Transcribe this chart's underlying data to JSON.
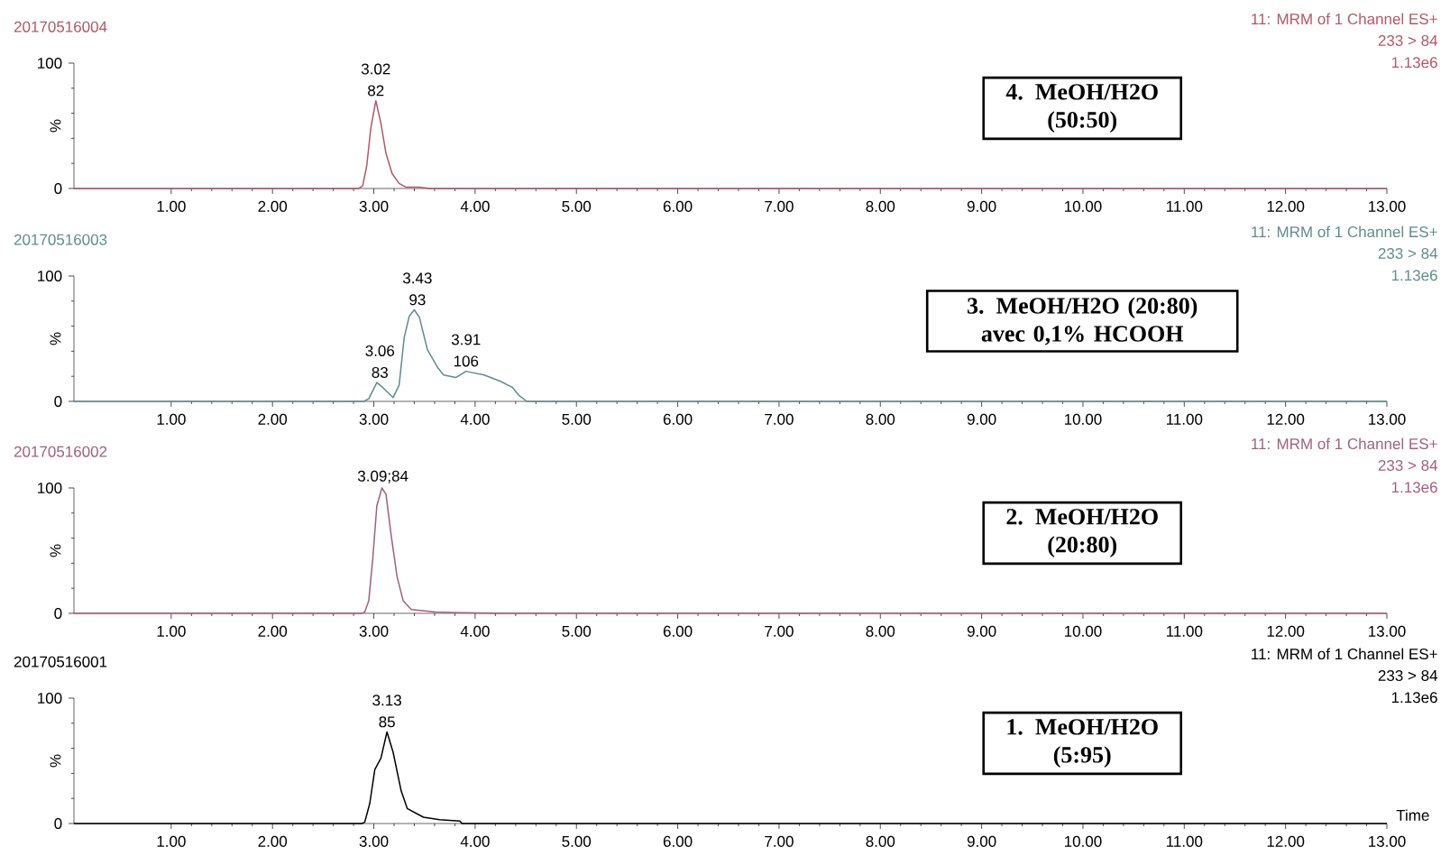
{
  "chart_data": [
    {
      "type": "line",
      "title": "20170516004",
      "ylabel": "%",
      "color": "#b05868",
      "x": [
        0.04,
        2.85,
        2.89,
        2.93,
        2.97,
        3.02,
        3.07,
        3.12,
        3.18,
        3.25,
        3.32,
        3.45,
        3.55,
        13.0
      ],
      "values": [
        0,
        0,
        2,
        18,
        48,
        70,
        52,
        28,
        12,
        4,
        1,
        1,
        0,
        0
      ],
      "xlim": [
        0.04,
        13.0
      ],
      "ylim": [
        0,
        100
      ],
      "yticks": [
        0,
        100
      ],
      "xticks": [
        {
          "value": 1,
          "label": "1.00"
        },
        {
          "value": 2,
          "label": "2.00"
        },
        {
          "value": 3,
          "label": "3.00"
        },
        {
          "value": 4,
          "label": "4.00"
        },
        {
          "value": 5,
          "label": "5.00"
        },
        {
          "value": 6,
          "label": "6.00"
        },
        {
          "value": 7,
          "label": "7.00"
        },
        {
          "value": 8,
          "label": "8.00"
        },
        {
          "value": 9,
          "label": "9.00"
        },
        {
          "value": 10,
          "label": "10.00"
        },
        {
          "value": 11,
          "label": "11.00"
        },
        {
          "value": 12,
          "label": "12.00"
        },
        {
          "value": 13,
          "label": "13.00"
        }
      ],
      "annotations": [
        "11: MRM of 1 Channel ES+",
        "233 > 84",
        "1.13e6",
        "4. MeOH/H2O (50:50)",
        {
          "text": "3.02 82",
          "x": 3.02,
          "y": 70
        }
      ]
    },
    {
      "type": "line",
      "title": "20170516003",
      "ylabel": "%",
      "color": "#5f8c8c",
      "x": [
        0.04,
        2.9,
        2.95,
        3.03,
        3.09,
        3.19,
        3.25,
        3.3,
        3.35,
        3.4,
        3.45,
        3.53,
        3.63,
        3.69,
        3.81,
        3.91,
        4.09,
        4.25,
        4.37,
        4.43,
        4.51,
        13.0
      ],
      "values": [
        0,
        0,
        2,
        15,
        11,
        3,
        13,
        51,
        68,
        73,
        67,
        41,
        27,
        21,
        19,
        24,
        21,
        16,
        11,
        5,
        0,
        0
      ],
      "xlim": [
        0.04,
        13.0
      ],
      "ylim": [
        0,
        100
      ],
      "yticks": [
        0,
        100
      ],
      "xticks": [
        {
          "value": 1,
          "label": "1.00"
        },
        {
          "value": 2,
          "label": "2.00"
        },
        {
          "value": 3,
          "label": "3.00"
        },
        {
          "value": 4,
          "label": "4.00"
        },
        {
          "value": 5,
          "label": "5.00"
        },
        {
          "value": 6,
          "label": "6.00"
        },
        {
          "value": 7,
          "label": "7.00"
        },
        {
          "value": 8,
          "label": "8.00"
        },
        {
          "value": 9,
          "label": "9.00"
        },
        {
          "value": 10,
          "label": "10.00"
        },
        {
          "value": 11,
          "label": "11.00"
        },
        {
          "value": 12,
          "label": "12.00"
        },
        {
          "value": 13,
          "label": "13.00"
        }
      ],
      "annotations": [
        "11: MRM of 1 Channel ES+",
        "233 > 84",
        "1.13e6",
        "3. MeOH/H2O (20:80) avec 0,1% HCOOH",
        {
          "text": "3.06 83",
          "x": 3.06,
          "y": 15
        },
        {
          "text": "3.43 93",
          "x": 3.43,
          "y": 73
        },
        {
          "text": "3.91 106",
          "x": 3.91,
          "y": 24
        }
      ]
    },
    {
      "type": "line",
      "title": "20170516002",
      "ylabel": "%",
      "color": "#a0607e",
      "x": [
        0.04,
        2.88,
        2.91,
        2.95,
        2.99,
        3.03,
        3.08,
        3.12,
        3.17,
        3.23,
        3.29,
        3.37,
        3.61,
        3.89,
        4.29,
        13.0
      ],
      "values": [
        0,
        0,
        1,
        10,
        44,
        86,
        100,
        95,
        63,
        29,
        10,
        3,
        1,
        0.5,
        0,
        0
      ],
      "xlim": [
        0.04,
        13.0
      ],
      "ylim": [
        0,
        100
      ],
      "yticks": [
        0,
        100
      ],
      "xticks": [
        {
          "value": 1,
          "label": "1.00"
        },
        {
          "value": 2,
          "label": "2.00"
        },
        {
          "value": 3,
          "label": "3.00"
        },
        {
          "value": 4,
          "label": "4.00"
        },
        {
          "value": 5,
          "label": "5.00"
        },
        {
          "value": 6,
          "label": "6.00"
        },
        {
          "value": 7,
          "label": "7.00"
        },
        {
          "value": 8,
          "label": "8.00"
        },
        {
          "value": 9,
          "label": "9.00"
        },
        {
          "value": 10,
          "label": "10.00"
        },
        {
          "value": 11,
          "label": "11.00"
        },
        {
          "value": 12,
          "label": "12.00"
        },
        {
          "value": 13,
          "label": "13.00"
        }
      ],
      "annotations": [
        "11: MRM of 1 Channel ES+",
        "233 > 84",
        "1.13e6",
        "2. MeOH/H2O (20:80)",
        {
          "text": "3.09;84",
          "x": 3.09,
          "y": 100
        }
      ]
    },
    {
      "type": "line",
      "title": "20170516001",
      "ylabel": "%",
      "xlabel": "Time",
      "color": "#000000",
      "x": [
        0.04,
        2.88,
        2.91,
        2.96,
        3.01,
        3.07,
        3.13,
        3.19,
        3.27,
        3.33,
        3.49,
        3.65,
        3.85,
        3.87,
        13.0
      ],
      "values": [
        0,
        0,
        1,
        16,
        43,
        52,
        73,
        57,
        26,
        12,
        5,
        3,
        2,
        0,
        0
      ],
      "xlim": [
        0.04,
        13.0
      ],
      "ylim": [
        0,
        100
      ],
      "yticks": [
        0,
        100
      ],
      "xticks": [
        {
          "value": 1,
          "label": "1.00"
        },
        {
          "value": 2,
          "label": "2.00"
        },
        {
          "value": 3,
          "label": "3.00"
        },
        {
          "value": 4,
          "label": "4.00"
        },
        {
          "value": 5,
          "label": "5.00"
        },
        {
          "value": 6,
          "label": "6.00"
        },
        {
          "value": 7,
          "label": "7.00"
        },
        {
          "value": 8,
          "label": "8.00"
        },
        {
          "value": 9,
          "label": "9.00"
        },
        {
          "value": 10,
          "label": "10.00"
        },
        {
          "value": 11,
          "label": "11.00"
        },
        {
          "value": 12,
          "label": "12.00"
        },
        {
          "value": 13,
          "label": "13.00"
        }
      ],
      "annotations": [
        "11: MRM of 1 Channel ES+",
        "233 > 84",
        "1.13e6",
        "1. MeOH/H2O (5:95)",
        {
          "text": "3.13 85",
          "x": 3.13,
          "y": 73
        }
      ]
    }
  ]
}
